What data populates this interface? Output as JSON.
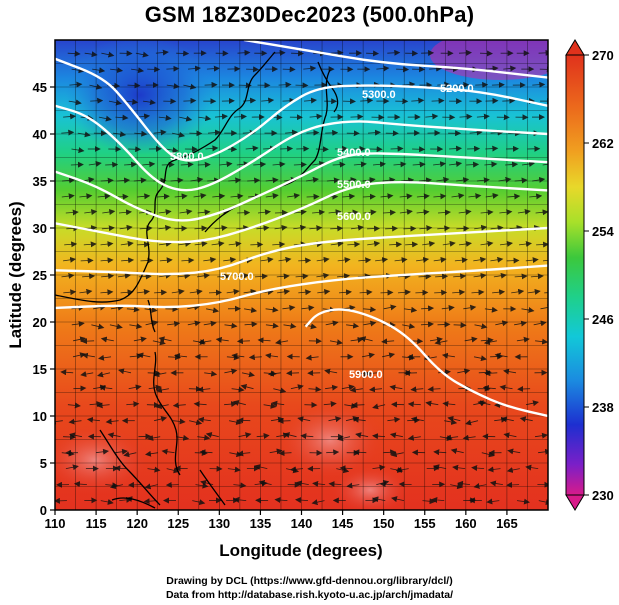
{
  "title": "GSM 18Z30Dec2023 (500.0hPa)",
  "x_axis": {
    "label": "Longitude (degrees)",
    "ticks": [
      "110",
      "115",
      "120",
      "125",
      "130",
      "135",
      "140",
      "145",
      "150",
      "155",
      "160",
      "165"
    ]
  },
  "y_axis": {
    "label": "Latitude  (degrees)",
    "ticks": [
      "0",
      "5",
      "10",
      "15",
      "20",
      "25",
      "30",
      "35",
      "40",
      "45"
    ]
  },
  "colorbar": {
    "ticks": [
      "270",
      "262",
      "254",
      "246",
      "238",
      "230"
    ],
    "colors": [
      "#d81b8a",
      "#7a1fc8",
      "#1d2fd0",
      "#1b8be0",
      "#12c8d8",
      "#1fd08a",
      "#3cc83c",
      "#a8e02a",
      "#e8d82a",
      "#f0a020",
      "#ec6a1c",
      "#e0321c"
    ]
  },
  "contour_labels": [
    "5300.0",
    "5200.0",
    "5400.0",
    "5500.0",
    "5600.0",
    "5700.0",
    "5800.0",
    "5900.0"
  ],
  "credits": {
    "line1": "Drawing by DCL (https://www.gfd-dennou.org/library/dcl/)",
    "line2": "Data from http://database.rish.kyoto-u.ac.jp/arch/jmadata/"
  },
  "chart_data": {
    "type": "heatmap",
    "title": "GSM 18Z30Dec2023 (500.0hPa)",
    "xlabel": "Longitude (degrees)",
    "ylabel": "Latitude  (degrees)",
    "xlim": [
      110,
      170
    ],
    "ylim": [
      0,
      50
    ],
    "colorbar_range": [
      230,
      270
    ],
    "contours": [
      {
        "level": "5200.0",
        "points": [
          [
            133,
            50
          ],
          [
            140,
            49
          ],
          [
            150,
            47.5
          ],
          [
            160,
            47
          ],
          [
            170,
            46
          ]
        ]
      },
      {
        "level": "5300.0",
        "points": [
          [
            110,
            48
          ],
          [
            116,
            46
          ],
          [
            119,
            43
          ],
          [
            123,
            38.5
          ],
          [
            125.5,
            37
          ],
          [
            129,
            37.5
          ],
          [
            134,
            40
          ],
          [
            138,
            43
          ],
          [
            142,
            45
          ],
          [
            148,
            45.2
          ],
          [
            155,
            45
          ],
          [
            162,
            44.5
          ],
          [
            170,
            43
          ]
        ]
      },
      {
        "level": "5400.0",
        "points": [
          [
            110,
            43
          ],
          [
            114,
            42
          ],
          [
            118,
            39
          ],
          [
            122,
            35
          ],
          [
            125.5,
            33.8
          ],
          [
            129,
            34.5
          ],
          [
            134,
            37
          ],
          [
            140,
            40.5
          ],
          [
            146,
            41.5
          ],
          [
            152,
            41
          ],
          [
            160,
            40.5
          ],
          [
            170,
            40
          ]
        ]
      },
      {
        "level": "5500.0",
        "points": [
          [
            110,
            36
          ],
          [
            115,
            34.5
          ],
          [
            120,
            32
          ],
          [
            125,
            30.5
          ],
          [
            130,
            31.5
          ],
          [
            135,
            33.5
          ],
          [
            140,
            35.5
          ],
          [
            145,
            37.8
          ],
          [
            150,
            38
          ],
          [
            160,
            37.5
          ],
          [
            170,
            37
          ]
        ]
      },
      {
        "level": "5600.0",
        "points": [
          [
            110,
            30.5
          ],
          [
            116,
            29.5
          ],
          [
            122,
            28.5
          ],
          [
            128,
            28.5
          ],
          [
            134,
            30
          ],
          [
            140,
            32
          ],
          [
            146,
            34.5
          ],
          [
            152,
            35
          ],
          [
            160,
            34.5
          ],
          [
            170,
            34
          ]
        ]
      },
      {
        "level": "5700.0",
        "points": [
          [
            110,
            25.5
          ],
          [
            118,
            25.3
          ],
          [
            124,
            25
          ],
          [
            130,
            25.5
          ],
          [
            136,
            27.5
          ],
          [
            142,
            28.5
          ],
          [
            150,
            29
          ],
          [
            160,
            29.5
          ],
          [
            170,
            30
          ]
        ]
      },
      {
        "level": "5800.0",
        "points": [
          [
            110,
            21.5
          ],
          [
            118,
            21.8
          ],
          [
            124,
            21.5
          ],
          [
            130,
            22
          ],
          [
            136,
            23.5
          ],
          [
            144,
            24.5
          ],
          [
            152,
            25
          ],
          [
            162,
            25.5
          ],
          [
            170,
            26
          ]
        ]
      },
      {
        "level": "5900.0",
        "points": [
          [
            140.5,
            19.5
          ],
          [
            142,
            21
          ],
          [
            145,
            21.5
          ],
          [
            149,
            20.5
          ],
          [
            153,
            18.5
          ],
          [
            157,
            14.5
          ],
          [
            161,
            12.5
          ],
          [
            165,
            11
          ],
          [
            170,
            10
          ]
        ]
      }
    ]
  }
}
